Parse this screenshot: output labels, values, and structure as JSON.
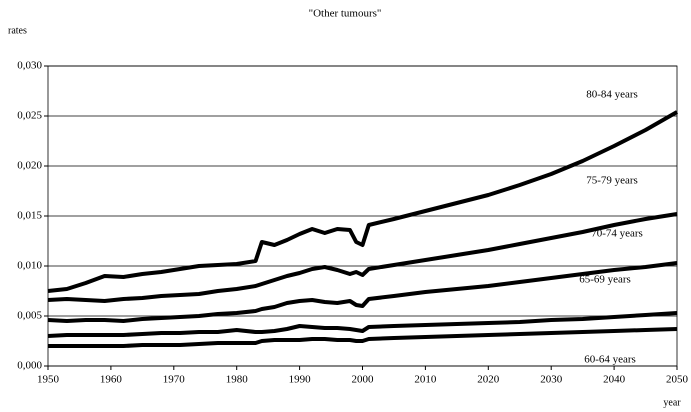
{
  "chart_data": {
    "type": "line",
    "title": "\"Other tumours\"",
    "y_label": "rates",
    "x_label": "year",
    "x": [
      1950,
      1953,
      1956,
      1959,
      1962,
      1965,
      1968,
      1971,
      1974,
      1977,
      1980,
      1983,
      1984,
      1986,
      1988,
      1990,
      1992,
      1994,
      1996,
      1998,
      1999,
      2000,
      2001,
      2005,
      2010,
      2015,
      2020,
      2025,
      2030,
      2035,
      2040,
      2045,
      2050
    ],
    "series": [
      {
        "name": "80-84 years",
        "color": "#000000",
        "values": [
          0.0075,
          0.0077,
          0.0083,
          0.009,
          0.0089,
          0.0092,
          0.0094,
          0.0097,
          0.01,
          0.0101,
          0.0102,
          0.0105,
          0.0124,
          0.0121,
          0.0126,
          0.0132,
          0.0137,
          0.0133,
          0.0137,
          0.0136,
          0.0124,
          0.0121,
          0.0141,
          0.0147,
          0.0155,
          0.0163,
          0.0171,
          0.0181,
          0.0192,
          0.0205,
          0.022,
          0.0236,
          0.0254
        ]
      },
      {
        "name": "75-79 years",
        "color": "#000000",
        "values": [
          0.0066,
          0.0067,
          0.0066,
          0.0065,
          0.0067,
          0.0068,
          0.007,
          0.0071,
          0.0072,
          0.0075,
          0.0077,
          0.008,
          0.0082,
          0.0086,
          0.009,
          0.0093,
          0.0097,
          0.0099,
          0.0096,
          0.0092,
          0.0094,
          0.0091,
          0.0097,
          0.0101,
          0.0106,
          0.0111,
          0.0116,
          0.0122,
          0.0128,
          0.0134,
          0.0141,
          0.0147,
          0.0152
        ]
      },
      {
        "name": "70-74 years",
        "color": "#000000",
        "values": [
          0.0046,
          0.0045,
          0.0046,
          0.0046,
          0.0045,
          0.0047,
          0.0048,
          0.0049,
          0.005,
          0.0052,
          0.0053,
          0.0055,
          0.0057,
          0.0059,
          0.0063,
          0.0065,
          0.0066,
          0.0064,
          0.0063,
          0.0065,
          0.0061,
          0.006,
          0.0067,
          0.007,
          0.0074,
          0.0077,
          0.008,
          0.0084,
          0.0088,
          0.0092,
          0.0096,
          0.0099,
          0.0103
        ]
      },
      {
        "name": "65-69 years",
        "color": "#000000",
        "values": [
          0.003,
          0.0031,
          0.0031,
          0.0031,
          0.0031,
          0.0032,
          0.0033,
          0.0033,
          0.0034,
          0.0034,
          0.0036,
          0.0034,
          0.0034,
          0.0035,
          0.0037,
          0.004,
          0.0039,
          0.0038,
          0.0038,
          0.0037,
          0.0036,
          0.0035,
          0.0039,
          0.004,
          0.0041,
          0.0042,
          0.0043,
          0.0044,
          0.0046,
          0.0047,
          0.0049,
          0.0051,
          0.0053
        ]
      },
      {
        "name": "60-64 years",
        "color": "#000000",
        "values": [
          0.002,
          0.002,
          0.002,
          0.002,
          0.002,
          0.0021,
          0.0021,
          0.0021,
          0.0022,
          0.0023,
          0.0023,
          0.0023,
          0.0025,
          0.0026,
          0.0026,
          0.0026,
          0.0027,
          0.0027,
          0.0026,
          0.0026,
          0.0025,
          0.0025,
          0.0027,
          0.0028,
          0.0029,
          0.003,
          0.0031,
          0.0032,
          0.0033,
          0.0034,
          0.0035,
          0.0036,
          0.0037
        ]
      }
    ],
    "xlim": [
      1950,
      2050
    ],
    "xticks": [
      1950,
      1960,
      1970,
      1980,
      1990,
      2000,
      2010,
      2020,
      2030,
      2040,
      2050
    ],
    "ylim": [
      0,
      0.03
    ],
    "yticks": [
      {
        "value": 0,
        "label": "0,000"
      },
      {
        "value": 0.005,
        "label": "0,005"
      },
      {
        "value": 0.01,
        "label": "0,010"
      },
      {
        "value": 0.015,
        "label": "0,015"
      },
      {
        "value": 0.02,
        "label": "0,020"
      },
      {
        "value": 0.025,
        "label": "0,025"
      },
      {
        "value": 0.03,
        "label": "0,030"
      }
    ],
    "grid": true
  }
}
